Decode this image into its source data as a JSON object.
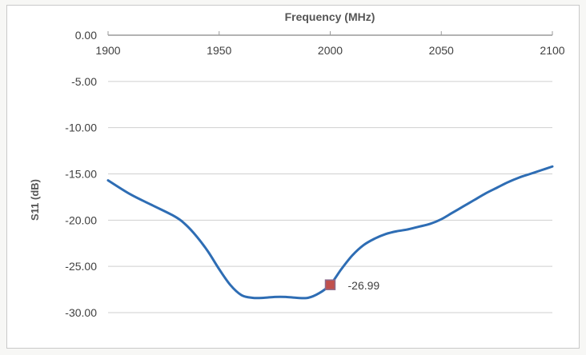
{
  "chart_data": {
    "type": "line",
    "title": "Frequency (MHz)",
    "xlabel": "Frequency (MHz)",
    "ylabel": "S11 (dB)",
    "xlim": [
      1900,
      2100
    ],
    "ylim": [
      -30,
      0
    ],
    "x_axis_position": "top",
    "grid": "horizontal",
    "legend": "none",
    "x_ticks": [
      "1900",
      "1950",
      "2000",
      "2050",
      "2100"
    ],
    "y_ticks": [
      "0.00",
      "-5.00",
      "-10.00",
      "-15.00",
      "-20.00",
      "-25.00",
      "-30.00"
    ],
    "series": [
      {
        "color": "#2e6db4",
        "x": [
          1900,
          1910,
          1920,
          1930,
          1935,
          1940,
          1945,
          1950,
          1955,
          1960,
          1965,
          1970,
          1975,
          1980,
          1985,
          1990,
          1995,
          2000,
          2005,
          2010,
          2015,
          2020,
          2025,
          2030,
          2035,
          2040,
          2045,
          2050,
          2055,
          2060,
          2065,
          2070,
          2075,
          2080,
          2085,
          2090,
          2095,
          2100
        ],
        "y": [
          -15.7,
          -17.2,
          -18.4,
          -19.6,
          -20.5,
          -21.8,
          -23.4,
          -25.3,
          -27.0,
          -28.1,
          -28.4,
          -28.4,
          -28.3,
          -28.3,
          -28.4,
          -28.4,
          -27.9,
          -26.99,
          -25.3,
          -23.8,
          -22.7,
          -22.0,
          -21.5,
          -21.2,
          -21.0,
          -20.7,
          -20.4,
          -19.9,
          -19.2,
          -18.5,
          -17.8,
          -17.1,
          -16.5,
          -15.9,
          -15.4,
          -15.0,
          -14.6,
          -14.2
        ]
      }
    ],
    "marker": {
      "x": 2000,
      "y": -26.99,
      "label": "-26.99",
      "color": "#c0504d"
    }
  }
}
